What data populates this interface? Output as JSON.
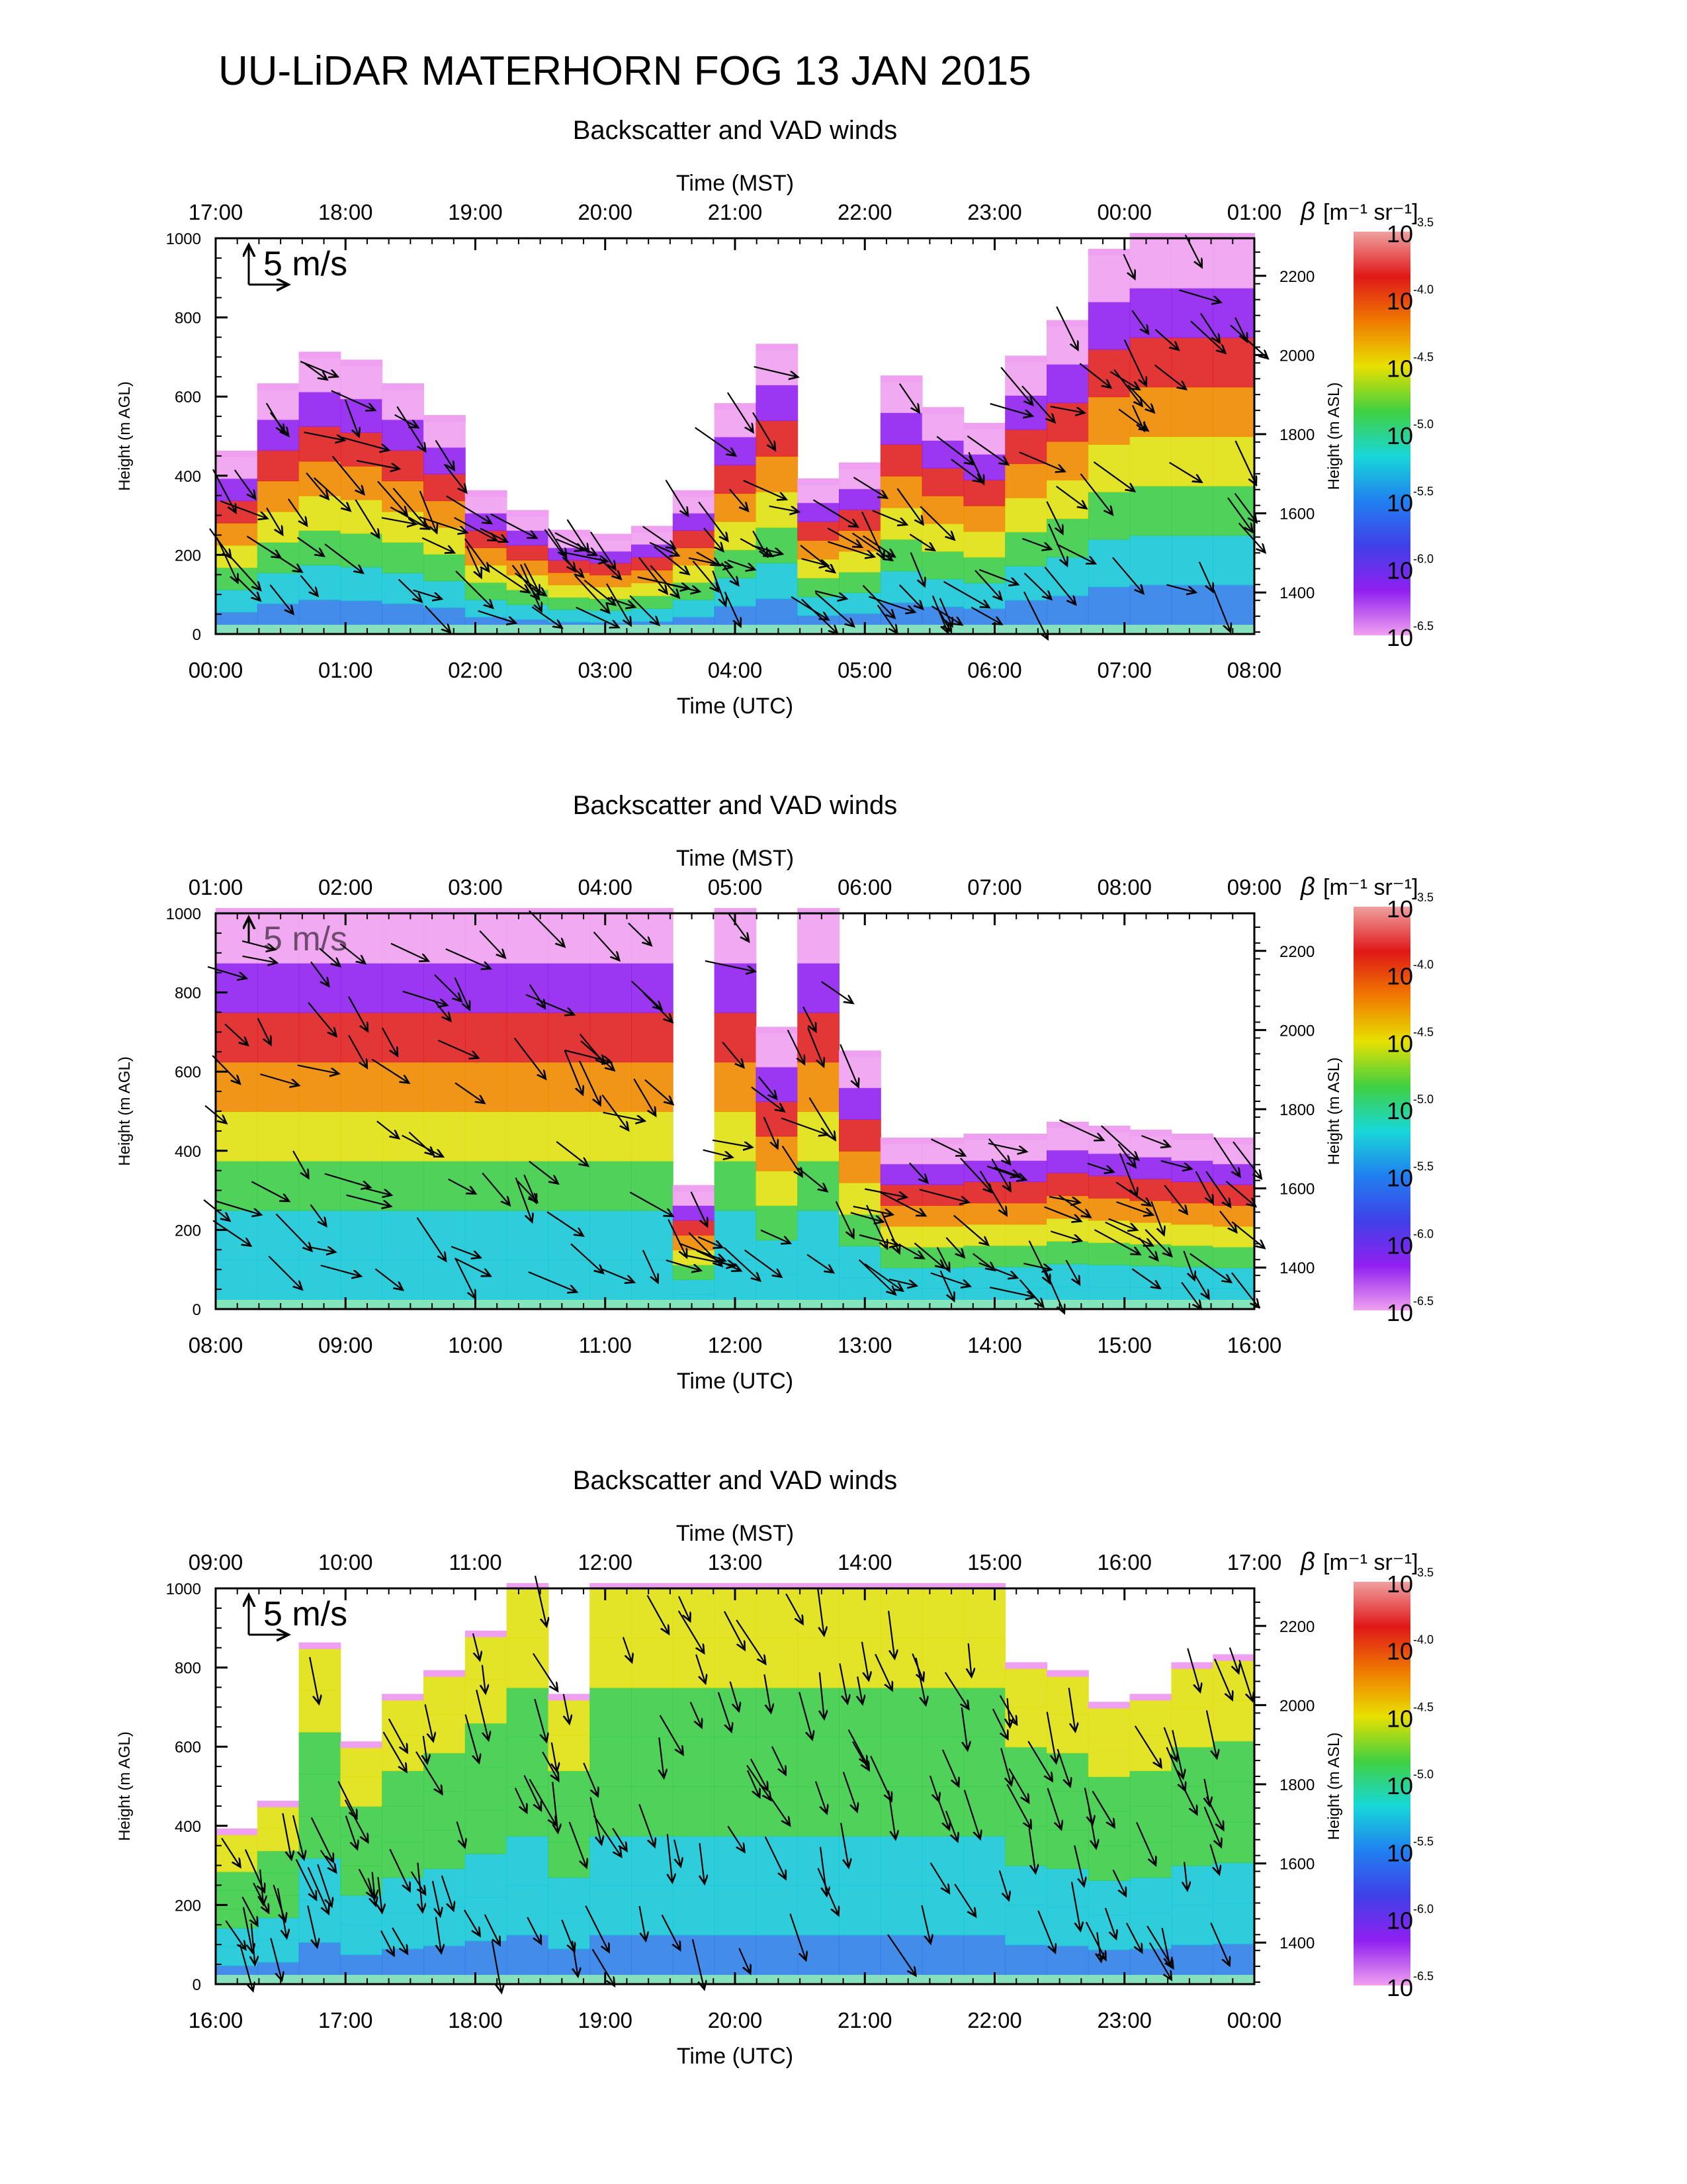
{
  "figure_title": "UU-LiDAR MATERHORN FOG  13 JAN 2015",
  "scale_arrow_label": "5 m/s",
  "colorbar": {
    "title_symbol": "β",
    "title_units": "[m⁻¹ sr⁻¹]",
    "tick_labels": [
      {
        "base": "10",
        "exp": "-3.5"
      },
      {
        "base": "10",
        "exp": "-4.0"
      },
      {
        "base": "10",
        "exp": "-4.5"
      },
      {
        "base": "10",
        "exp": "-5.0"
      },
      {
        "base": "10",
        "exp": "-5.5"
      },
      {
        "base": "10",
        "exp": "-6.0"
      },
      {
        "base": "10",
        "exp": "-6.5"
      }
    ],
    "colors": [
      "#f0a0a0",
      "#e01818",
      "#f07a00",
      "#e8e000",
      "#40d040",
      "#18d8d8",
      "#2080f0",
      "#4040e8",
      "#9020f0",
      "#f0a0f0"
    ]
  },
  "chart_data": [
    {
      "type": "heatmap",
      "title": "Backscatter and VAD winds",
      "top_axis_label": "Time (MST)",
      "top_ticks": [
        "17:00",
        "18:00",
        "19:00",
        "20:00",
        "21:00",
        "22:00",
        "23:00",
        "00:00",
        "01:00"
      ],
      "xlabel": "Time (UTC)",
      "x_ticks": [
        "00:00",
        "01:00",
        "02:00",
        "03:00",
        "04:00",
        "05:00",
        "06:00",
        "07:00",
        "08:00"
      ],
      "ylabel": "Height (m AGL)",
      "ylim": [
        0,
        1000
      ],
      "y_ticks": [
        "0",
        "200",
        "400",
        "600",
        "800",
        "1000"
      ],
      "y2label": "Height (m ASL)",
      "y2_ticks": [
        "1400",
        "1600",
        "1800",
        "2000",
        "2200"
      ],
      "echo_top_m": [
        450,
        620,
        700,
        680,
        620,
        540,
        350,
        300,
        250,
        240,
        260,
        350,
        570,
        720,
        380,
        420,
        640,
        560,
        520,
        690,
        780,
        960,
        1000,
        1000,
        1000
      ]
    },
    {
      "type": "heatmap",
      "title": "Backscatter and VAD winds",
      "top_axis_label": "Time (MST)",
      "top_ticks": [
        "01:00",
        "02:00",
        "03:00",
        "04:00",
        "05:00",
        "06:00",
        "07:00",
        "08:00",
        "09:00"
      ],
      "xlabel": "Time (UTC)",
      "x_ticks": [
        "08:00",
        "09:00",
        "10:00",
        "11:00",
        "12:00",
        "13:00",
        "14:00",
        "15:00",
        "16:00"
      ],
      "ylabel": "Height (m AGL)",
      "ylim": [
        0,
        1000
      ],
      "y_ticks": [
        "0",
        "200",
        "400",
        "600",
        "800",
        "1000"
      ],
      "y2label": "Height (m ASL)",
      "y2_ticks": [
        "1400",
        "1600",
        "1800",
        "2000",
        "2200"
      ],
      "echo_top_m": [
        1000,
        1000,
        1000,
        1000,
        1000,
        1000,
        1000,
        1000,
        1000,
        1000,
        1000,
        300,
        1000,
        700,
        1000,
        640,
        420,
        420,
        430,
        430,
        460,
        450,
        440,
        430,
        420
      ]
    },
    {
      "type": "heatmap",
      "title": "Backscatter and VAD winds",
      "top_axis_label": "Time (MST)",
      "top_ticks": [
        "09:00",
        "10:00",
        "11:00",
        "12:00",
        "13:00",
        "14:00",
        "15:00",
        "16:00",
        "17:00"
      ],
      "xlabel": "Time (UTC)",
      "x_ticks": [
        "16:00",
        "17:00",
        "18:00",
        "19:00",
        "20:00",
        "21:00",
        "22:00",
        "23:00",
        "00:00"
      ],
      "ylabel": "Height (m AGL)",
      "ylim": [
        0,
        1000
      ],
      "y_ticks": [
        "0",
        "200",
        "400",
        "600",
        "800",
        "1000"
      ],
      "y2label": "Height (m ASL)",
      "y2_ticks": [
        "1400",
        "1600",
        "1800",
        "2000",
        "2200"
      ],
      "echo_top_m": [
        380,
        450,
        850,
        600,
        720,
        780,
        880,
        1000,
        720,
        1000,
        1000,
        1000,
        1000,
        1000,
        1000,
        1000,
        1000,
        1000,
        1000,
        800,
        780,
        700,
        720,
        800,
        820
      ]
    }
  ]
}
